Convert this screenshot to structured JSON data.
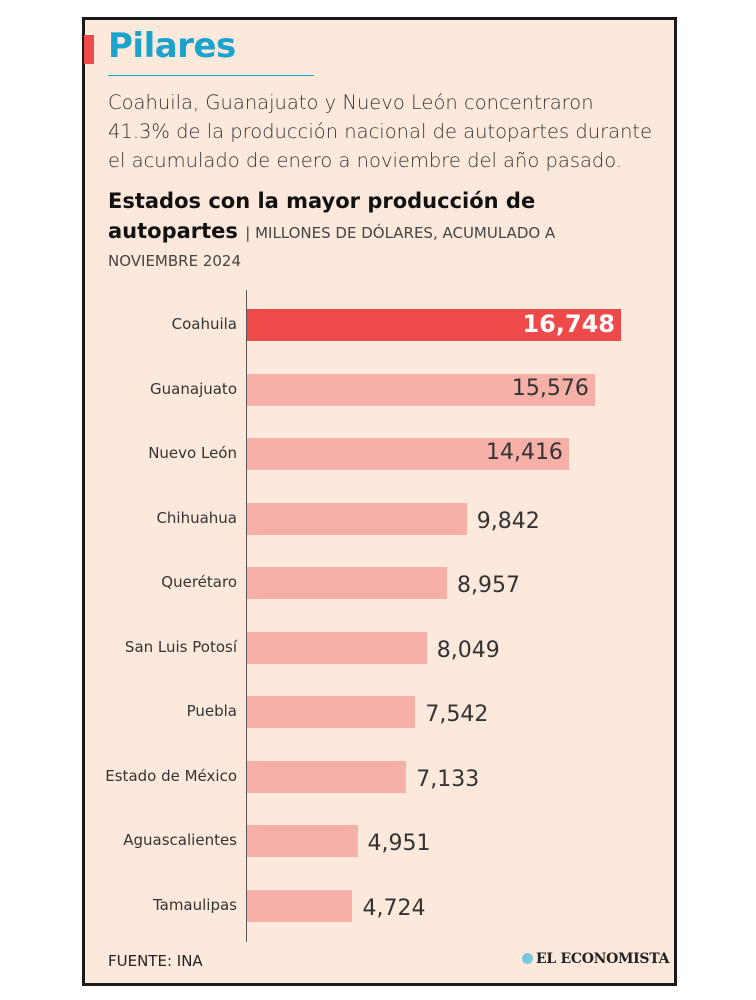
{
  "header": {
    "title": "Pilares",
    "lead": "Coahuila, Guanajuato y Nuevo León concentraron 41.3% de la producción nacional de autopartes durante el acumulado de enero a noviembre del año pasado.",
    "subtitle": "Estados con la mayor producción de autopartes",
    "unit_line1": "| MILLONES DE DÓLARES, ACUMULADO A",
    "unit_line2": "NOVIEMBRE 2024"
  },
  "chart_data": {
    "type": "bar",
    "orientation": "horizontal",
    "title": "Estados con la mayor producción de autopartes",
    "subtitle": "MILLONES DE DÓLARES, ACUMULADO A NOVIEMBRE 2024",
    "categories": [
      "Coahuila",
      "Guanajuato",
      "Nuevo León",
      "Chihuahua",
      "Querétaro",
      "San Luis Potosí",
      "Puebla",
      "Estado de México",
      "Aguascalientes",
      "Tamaulipas"
    ],
    "values": [
      16748,
      15576,
      14416,
      9842,
      8957,
      8049,
      7542,
      7133,
      4951,
      4724
    ],
    "value_labels": [
      "16,748",
      "15,576",
      "14,416",
      "9,842",
      "8,957",
      "8,049",
      "7,542",
      "7,133",
      "4,951",
      "4,724"
    ],
    "xlim": [
      0,
      16748
    ],
    "grid": false,
    "colors": {
      "highlight": "#ef4a4a",
      "default": "#f7b0a8"
    },
    "highlight_index": 0
  },
  "footer": {
    "source": "FUENTE: INA",
    "logo": "EL ECONOMISTA"
  }
}
